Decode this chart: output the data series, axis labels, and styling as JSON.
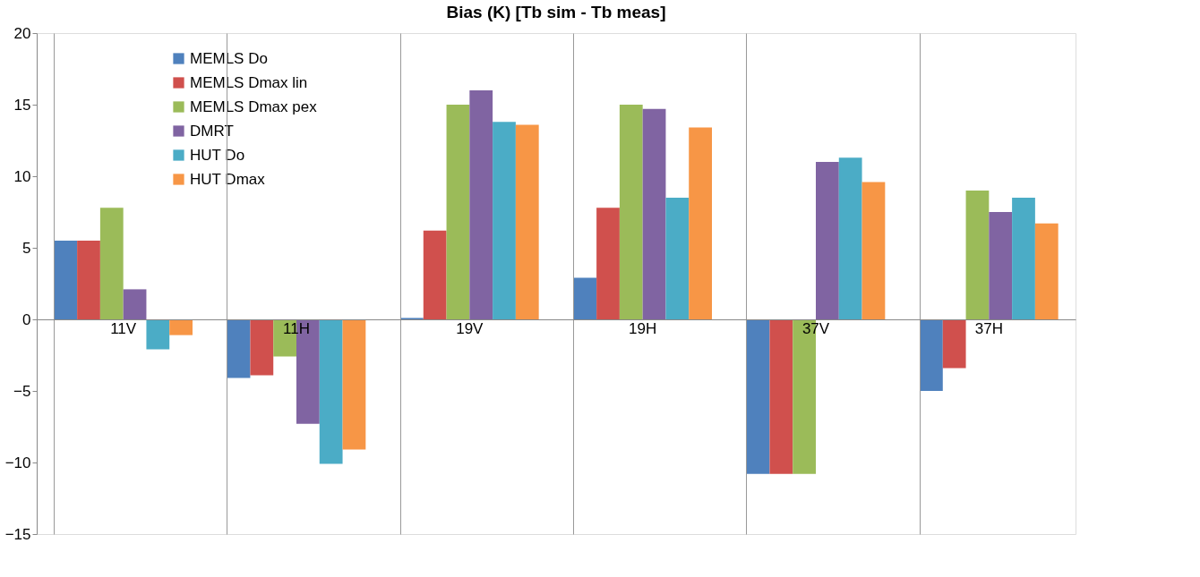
{
  "chart_data": {
    "type": "bar",
    "title": "Bias (K) [Tb sim - Tb meas]",
    "categories": [
      "11V",
      "11H",
      "19V",
      "19H",
      "37V",
      "37H"
    ],
    "series": [
      {
        "name": "MEMLS Do",
        "color": "#4f81bd",
        "values": [
          5.5,
          -4.1,
          0.1,
          2.9,
          -10.8,
          -5.0
        ]
      },
      {
        "name": "MEMLS Dmax lin",
        "color": "#d0504d",
        "values": [
          5.5,
          -3.9,
          6.2,
          7.8,
          -10.8,
          -3.4
        ]
      },
      {
        "name": "MEMLS Dmax pex",
        "color": "#9bbb59",
        "values": [
          7.8,
          -2.6,
          15.0,
          15.0,
          -10.8,
          9.0
        ]
      },
      {
        "name": "DMRT",
        "color": "#8064a2",
        "values": [
          2.1,
          -7.3,
          16.0,
          14.7,
          11.0,
          7.5
        ]
      },
      {
        "name": "HUT Do",
        "color": "#4bacc6",
        "values": [
          -2.1,
          -10.1,
          13.8,
          8.5,
          11.3,
          8.5
        ]
      },
      {
        "name": "HUT Dmax",
        "color": "#f79646",
        "values": [
          -1.1,
          -9.1,
          13.6,
          13.4,
          9.6,
          6.7
        ]
      }
    ],
    "ylim": [
      -15,
      20
    ],
    "yticks": [
      -15,
      -10,
      -5,
      0,
      5,
      10,
      15,
      20
    ],
    "grid": "x",
    "legend": "top left"
  }
}
